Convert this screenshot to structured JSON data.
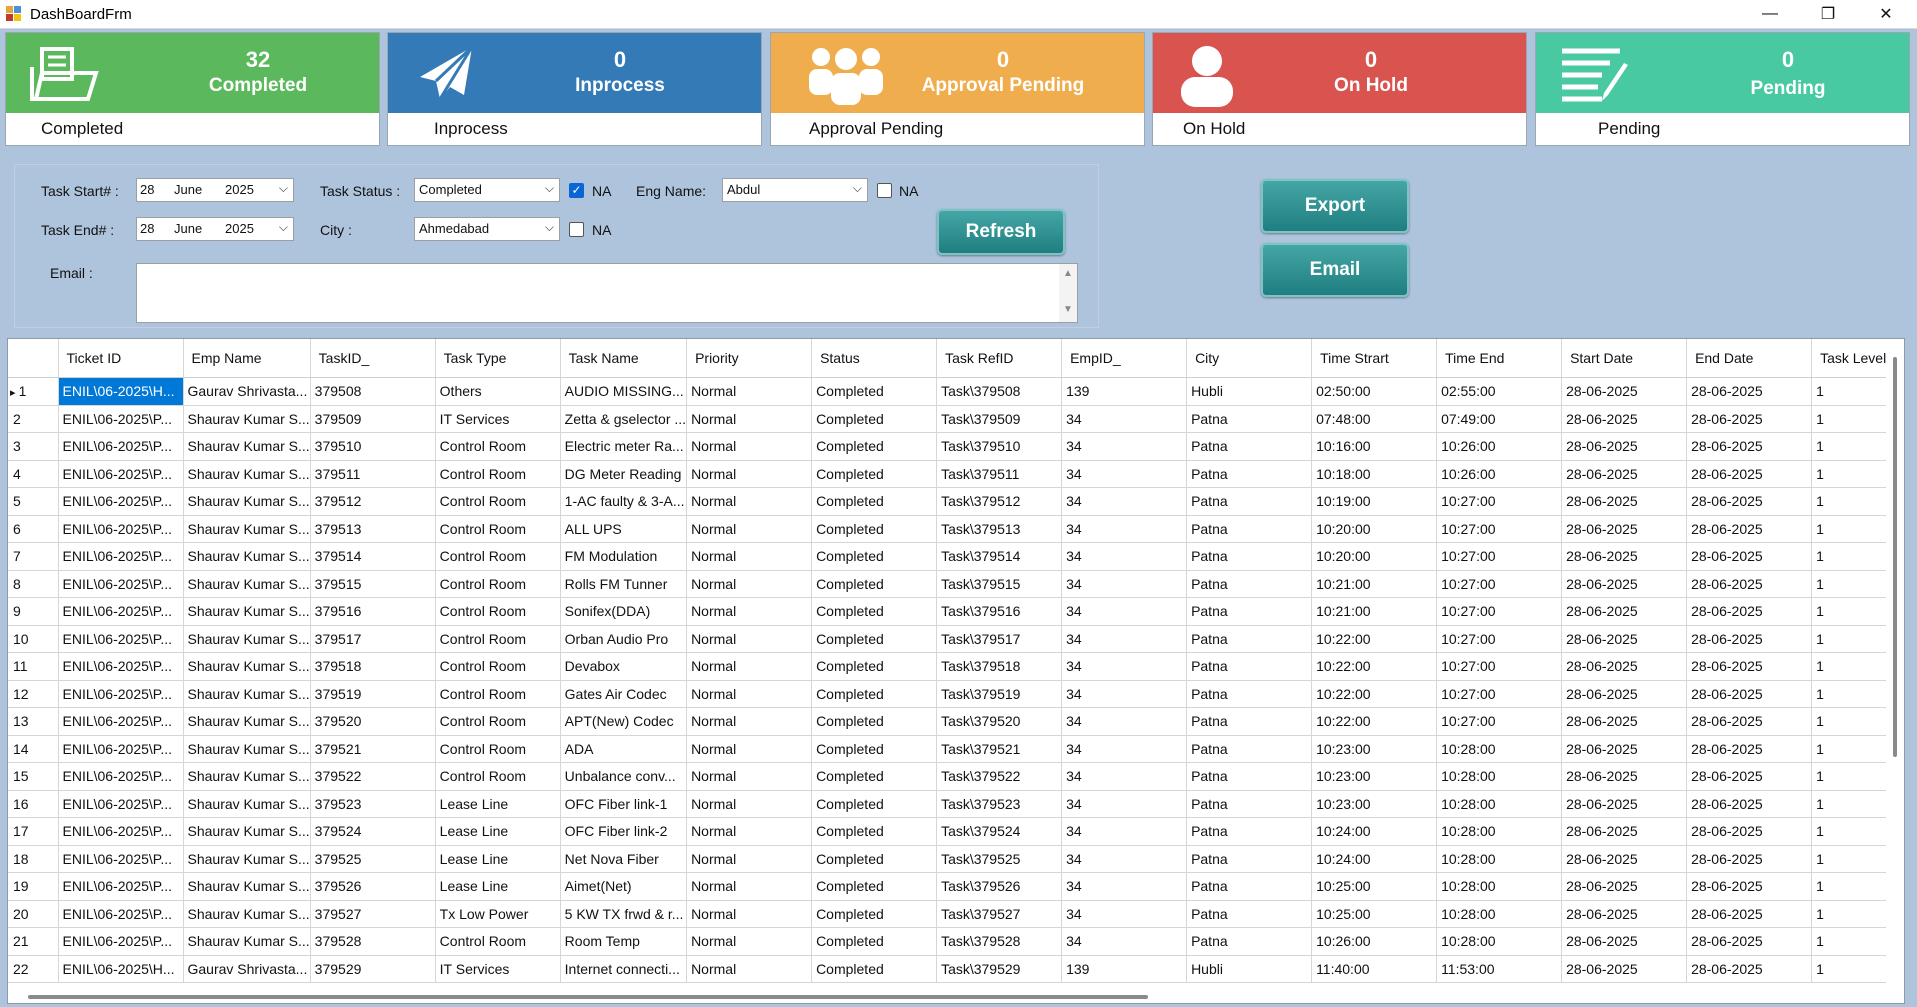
{
  "window": {
    "title": "DashBoardFrm",
    "min": "—",
    "max": "❐",
    "close": "✕"
  },
  "colors": {
    "completed": "#5cb85c",
    "inprocess": "#337ab7",
    "approval": "#f0ad4e",
    "onhold": "#d9534f",
    "pending": "#48c9a1"
  },
  "cards": [
    {
      "count": "32",
      "subtitle": "Completed",
      "footer": "Completed",
      "icon": "folder-document-icon"
    },
    {
      "count": "0",
      "subtitle": "Inprocess",
      "footer": "Inprocess",
      "icon": "paper-plane-icon"
    },
    {
      "count": "0",
      "subtitle": "Approval Pending",
      "footer": "Approval Pending",
      "icon": "users-group-icon"
    },
    {
      "count": "0",
      "subtitle": "On Hold",
      "footer": "On Hold",
      "icon": "user-icon"
    },
    {
      "count": "0",
      "subtitle": "Pending",
      "footer": "Pending",
      "icon": "edit-list-icon"
    }
  ],
  "filters": {
    "task_start_label": "Task Start# :",
    "task_start": {
      "day": "28",
      "month": "June",
      "year": "2025"
    },
    "task_end_label": "Task End# :",
    "task_end": {
      "day": "28",
      "month": "June",
      "year": "2025"
    },
    "task_status_label": "Task Status :",
    "task_status": "Completed",
    "na_label": "NA",
    "eng_name_label": "Eng Name:",
    "eng_name": "Abdul",
    "city_label": "City :",
    "city": "Ahmedabad",
    "email_label": "Email :",
    "email_value": "",
    "task_status_na_checked": true,
    "eng_name_na_checked": false,
    "city_na_checked": false
  },
  "buttons": {
    "refresh": "Refresh",
    "export": "Export",
    "email": "Email"
  },
  "grid": {
    "columns": [
      "Ticket ID",
      "Emp Name",
      "TaskID_",
      "Task Type",
      "Task Name",
      "Priority",
      "Status",
      "Task RefID",
      "EmpID_",
      "City",
      "Time Strart",
      "Time End",
      "Start Date",
      "End Date",
      "Task Level"
    ],
    "rows": [
      [
        "1",
        "ENIL\\06-2025\\H...",
        "Gaurav Shrivasta...",
        "379508",
        "Others",
        "AUDIO MISSING...",
        "Normal",
        "Completed",
        "Task\\379508",
        "139",
        "Hubli",
        "02:50:00",
        "02:55:00",
        "28-06-2025",
        "28-06-2025",
        "1"
      ],
      [
        "2",
        "ENIL\\06-2025\\P...",
        "Shaurav Kumar S...",
        "379509",
        "IT Services",
        "Zetta & gselector ...",
        "Normal",
        "Completed",
        "Task\\379509",
        "34",
        "Patna",
        "07:48:00",
        "07:49:00",
        "28-06-2025",
        "28-06-2025",
        "1"
      ],
      [
        "3",
        "ENIL\\06-2025\\P...",
        "Shaurav Kumar S...",
        "379510",
        "Control Room",
        "Electric meter Ra...",
        "Normal",
        "Completed",
        "Task\\379510",
        "34",
        "Patna",
        "10:16:00",
        "10:26:00",
        "28-06-2025",
        "28-06-2025",
        "1"
      ],
      [
        "4",
        "ENIL\\06-2025\\P...",
        "Shaurav Kumar S...",
        "379511",
        "Control Room",
        "DG Meter Reading",
        "Normal",
        "Completed",
        "Task\\379511",
        "34",
        "Patna",
        "10:18:00",
        "10:26:00",
        "28-06-2025",
        "28-06-2025",
        "1"
      ],
      [
        "5",
        "ENIL\\06-2025\\P...",
        "Shaurav Kumar S...",
        "379512",
        "Control Room",
        "1-AC faulty & 3-A...",
        "Normal",
        "Completed",
        "Task\\379512",
        "34",
        "Patna",
        "10:19:00",
        "10:27:00",
        "28-06-2025",
        "28-06-2025",
        "1"
      ],
      [
        "6",
        "ENIL\\06-2025\\P...",
        "Shaurav Kumar S...",
        "379513",
        "Control Room",
        "ALL UPS",
        "Normal",
        "Completed",
        "Task\\379513",
        "34",
        "Patna",
        "10:20:00",
        "10:27:00",
        "28-06-2025",
        "28-06-2025",
        "1"
      ],
      [
        "7",
        "ENIL\\06-2025\\P...",
        "Shaurav Kumar S...",
        "379514",
        "Control Room",
        "FM Modulation",
        "Normal",
        "Completed",
        "Task\\379514",
        "34",
        "Patna",
        "10:20:00",
        "10:27:00",
        "28-06-2025",
        "28-06-2025",
        "1"
      ],
      [
        "8",
        "ENIL\\06-2025\\P...",
        "Shaurav Kumar S...",
        "379515",
        "Control Room",
        "Rolls FM Tunner",
        "Normal",
        "Completed",
        "Task\\379515",
        "34",
        "Patna",
        "10:21:00",
        "10:27:00",
        "28-06-2025",
        "28-06-2025",
        "1"
      ],
      [
        "9",
        "ENIL\\06-2025\\P...",
        "Shaurav Kumar S...",
        "379516",
        "Control Room",
        "Sonifex(DDA)",
        "Normal",
        "Completed",
        "Task\\379516",
        "34",
        "Patna",
        "10:21:00",
        "10:27:00",
        "28-06-2025",
        "28-06-2025",
        "1"
      ],
      [
        "10",
        "ENIL\\06-2025\\P...",
        "Shaurav Kumar S...",
        "379517",
        "Control Room",
        "Orban Audio Pro",
        "Normal",
        "Completed",
        "Task\\379517",
        "34",
        "Patna",
        "10:22:00",
        "10:27:00",
        "28-06-2025",
        "28-06-2025",
        "1"
      ],
      [
        "11",
        "ENIL\\06-2025\\P...",
        "Shaurav Kumar S...",
        "379518",
        "Control Room",
        "Devabox",
        "Normal",
        "Completed",
        "Task\\379518",
        "34",
        "Patna",
        "10:22:00",
        "10:27:00",
        "28-06-2025",
        "28-06-2025",
        "1"
      ],
      [
        "12",
        "ENIL\\06-2025\\P...",
        "Shaurav Kumar S...",
        "379519",
        "Control Room",
        "Gates Air Codec",
        "Normal",
        "Completed",
        "Task\\379519",
        "34",
        "Patna",
        "10:22:00",
        "10:27:00",
        "28-06-2025",
        "28-06-2025",
        "1"
      ],
      [
        "13",
        "ENIL\\06-2025\\P...",
        "Shaurav Kumar S...",
        "379520",
        "Control Room",
        "APT(New) Codec",
        "Normal",
        "Completed",
        "Task\\379520",
        "34",
        "Patna",
        "10:22:00",
        "10:27:00",
        "28-06-2025",
        "28-06-2025",
        "1"
      ],
      [
        "14",
        "ENIL\\06-2025\\P...",
        "Shaurav Kumar S...",
        "379521",
        "Control Room",
        "ADA",
        "Normal",
        "Completed",
        "Task\\379521",
        "34",
        "Patna",
        "10:23:00",
        "10:28:00",
        "28-06-2025",
        "28-06-2025",
        "1"
      ],
      [
        "15",
        "ENIL\\06-2025\\P...",
        "Shaurav Kumar S...",
        "379522",
        "Control Room",
        "Unbalance conv...",
        "Normal",
        "Completed",
        "Task\\379522",
        "34",
        "Patna",
        "10:23:00",
        "10:28:00",
        "28-06-2025",
        "28-06-2025",
        "1"
      ],
      [
        "16",
        "ENIL\\06-2025\\P...",
        "Shaurav Kumar S...",
        "379523",
        "Lease Line",
        "OFC Fiber link-1",
        "Normal",
        "Completed",
        "Task\\379523",
        "34",
        "Patna",
        "10:23:00",
        "10:28:00",
        "28-06-2025",
        "28-06-2025",
        "1"
      ],
      [
        "17",
        "ENIL\\06-2025\\P...",
        "Shaurav Kumar S...",
        "379524",
        "Lease Line",
        "OFC Fiber link-2",
        "Normal",
        "Completed",
        "Task\\379524",
        "34",
        "Patna",
        "10:24:00",
        "10:28:00",
        "28-06-2025",
        "28-06-2025",
        "1"
      ],
      [
        "18",
        "ENIL\\06-2025\\P...",
        "Shaurav Kumar S...",
        "379525",
        "Lease Line",
        "Net Nova Fiber",
        "Normal",
        "Completed",
        "Task\\379525",
        "34",
        "Patna",
        "10:24:00",
        "10:28:00",
        "28-06-2025",
        "28-06-2025",
        "1"
      ],
      [
        "19",
        "ENIL\\06-2025\\P...",
        "Shaurav Kumar S...",
        "379526",
        "Lease Line",
        "Aimet(Net)",
        "Normal",
        "Completed",
        "Task\\379526",
        "34",
        "Patna",
        "10:25:00",
        "10:28:00",
        "28-06-2025",
        "28-06-2025",
        "1"
      ],
      [
        "20",
        "ENIL\\06-2025\\P...",
        "Shaurav Kumar S...",
        "379527",
        "Tx Low Power",
        "5 KW TX frwd & r...",
        "Normal",
        "Completed",
        "Task\\379527",
        "34",
        "Patna",
        "10:25:00",
        "10:28:00",
        "28-06-2025",
        "28-06-2025",
        "1"
      ],
      [
        "21",
        "ENIL\\06-2025\\P...",
        "Shaurav Kumar S...",
        "379528",
        "Control Room",
        "Room Temp",
        "Normal",
        "Completed",
        "Task\\379528",
        "34",
        "Patna",
        "10:26:00",
        "10:28:00",
        "28-06-2025",
        "28-06-2025",
        "1"
      ],
      [
        "22",
        "ENIL\\06-2025\\H...",
        "Gaurav Shrivasta...",
        "379529",
        "IT Services",
        "Internet connecti...",
        "Normal",
        "Completed",
        "Task\\379529",
        "139",
        "Hubli",
        "11:40:00",
        "11:53:00",
        "28-06-2025",
        "28-06-2025",
        "1"
      ]
    ]
  }
}
